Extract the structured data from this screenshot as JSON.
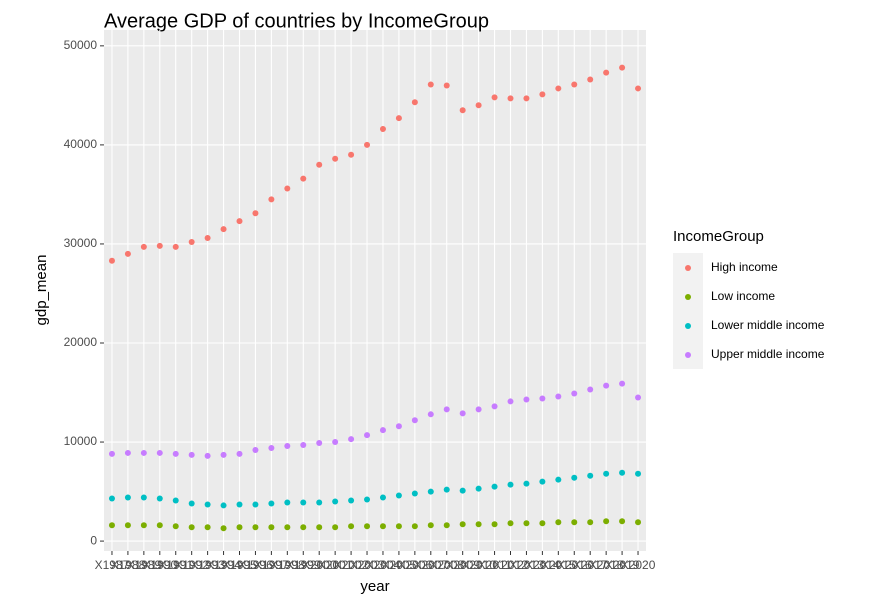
{
  "chart_data": {
    "type": "scatter",
    "title": "Average GDP of countries by IncomeGroup",
    "x_label": "year",
    "y_label": "gdp_mean",
    "legend_title": "IncomeGroup",
    "categories": [
      "X1987",
      "X1988",
      "X1989",
      "X1990",
      "X1991",
      "X1992",
      "X1993",
      "X1994",
      "X1995",
      "X1996",
      "X1997",
      "X1998",
      "X1999",
      "X2000",
      "X2001",
      "X2002",
      "X2003",
      "X2004",
      "X2005",
      "X2006",
      "X2007",
      "X2008",
      "X2009",
      "X2010",
      "X2011",
      "X2012",
      "X2013",
      "X2014",
      "X2015",
      "X2016",
      "X2017",
      "X2018",
      "X2019",
      "X2020"
    ],
    "series": [
      {
        "name": "High income",
        "color": "#F8766D",
        "values": [
          28300,
          29000,
          29700,
          29800,
          29700,
          30200,
          30600,
          31500,
          32300,
          33100,
          34500,
          35600,
          36600,
          38000,
          38600,
          39000,
          40000,
          41600,
          42700,
          44300,
          46100,
          46000,
          43500,
          44000,
          44800,
          44700,
          44700,
          45100,
          45700,
          46100,
          46600,
          47300,
          47800,
          45700
        ]
      },
      {
        "name": "Low income",
        "color": "#7CAE00",
        "values": [
          1600,
          1600,
          1600,
          1600,
          1500,
          1400,
          1400,
          1300,
          1400,
          1400,
          1400,
          1400,
          1400,
          1400,
          1400,
          1500,
          1500,
          1500,
          1500,
          1500,
          1600,
          1600,
          1700,
          1700,
          1700,
          1800,
          1800,
          1800,
          1900,
          1900,
          1900,
          2000,
          2000,
          1900
        ]
      },
      {
        "name": "Lower middle income",
        "color": "#00BFC4",
        "values": [
          4300,
          4400,
          4400,
          4300,
          4100,
          3800,
          3700,
          3600,
          3700,
          3700,
          3800,
          3900,
          3900,
          3900,
          4000,
          4100,
          4200,
          4400,
          4600,
          4800,
          5000,
          5200,
          5100,
          5300,
          5500,
          5700,
          5800,
          6000,
          6200,
          6400,
          6600,
          6800,
          6900,
          6800
        ]
      },
      {
        "name": "Upper middle income",
        "color": "#C77CFF",
        "values": [
          8800,
          8900,
          8900,
          8900,
          8800,
          8700,
          8600,
          8700,
          8800,
          9200,
          9400,
          9600,
          9700,
          9900,
          10000,
          10300,
          10700,
          11200,
          11600,
          12200,
          12800,
          13300,
          12900,
          13300,
          13600,
          14100,
          14300,
          14400,
          14600,
          14900,
          15300,
          15700,
          15900,
          14500
        ]
      }
    ],
    "ylim": [
      -1000,
      51600
    ],
    "yticks": [
      0,
      10000,
      20000,
      30000,
      40000,
      50000
    ],
    "grid": true,
    "legend_position": "right"
  }
}
